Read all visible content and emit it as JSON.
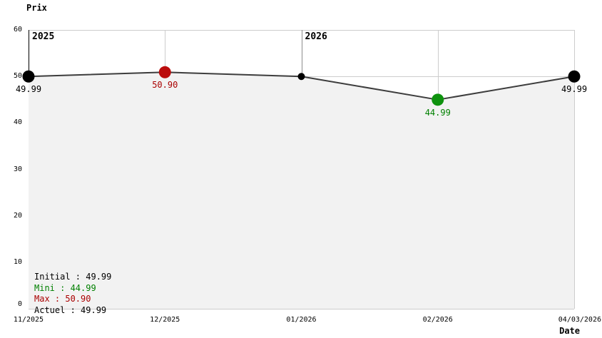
{
  "chart_data": {
    "type": "line",
    "title": "Prix",
    "xlabel": "Date",
    "ylabel": "Prix",
    "x": [
      "11/2025",
      "12/2025",
      "01/2026",
      "02/2026",
      "04/03/2026"
    ],
    "series": [
      {
        "name": "Prix",
        "values": [
          49.99,
          50.9,
          49.99,
          44.99,
          49.99
        ],
        "point_labels": [
          "49.99",
          "50.90",
          "",
          "44.99",
          "49.99"
        ],
        "point_roles": [
          "initial",
          "max",
          "intermediate",
          "min",
          "current"
        ]
      }
    ],
    "ylim": [
      0,
      60
    ],
    "yticks": [
      60,
      50,
      40,
      30,
      20,
      10,
      0
    ],
    "grid": true,
    "area_fill": true,
    "year_annotations": [
      {
        "label": "2025",
        "tick_index": 0
      },
      {
        "label": "2026",
        "tick_index": 2
      }
    ],
    "legend_position": "bottom-left"
  },
  "legend": {
    "separator": " : ",
    "items": [
      {
        "label": "Initial",
        "value": "49.99",
        "role": "initial"
      },
      {
        "label": "Mini",
        "value": "44.99",
        "role": "min"
      },
      {
        "label": "Max",
        "value": "50.90",
        "role": "max"
      },
      {
        "label": "Actuel",
        "value": "49.99",
        "role": "current"
      }
    ]
  },
  "colors": {
    "background": "#ffffff",
    "area_fill": "#f2f2f2",
    "grid": "#cccccc",
    "axis": "#000000",
    "year_grid": "#8c8c8c",
    "line": "#3d3d3d",
    "point_default": "#000000",
    "point_max": "#bb0c0c",
    "point_min": "#0e920e",
    "text_default": "#000000",
    "text_max": "#aa0000",
    "text_min": "#008000"
  }
}
